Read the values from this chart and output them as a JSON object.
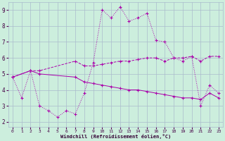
{
  "xlabel": "Windchill (Refroidissement éolien,°C)",
  "background_color": "#cceedd",
  "grid_color": "#aabbcc",
  "line_color": "#aa00aa",
  "xlim": [
    -0.5,
    23.5
  ],
  "ylim": [
    1.7,
    9.5
  ],
  "yticks": [
    2,
    3,
    4,
    5,
    6,
    7,
    8,
    9
  ],
  "xticks": [
    0,
    1,
    2,
    3,
    4,
    5,
    6,
    7,
    8,
    9,
    10,
    11,
    12,
    13,
    14,
    15,
    16,
    17,
    18,
    19,
    20,
    21,
    22,
    23
  ],
  "series1_x": [
    0,
    1,
    2,
    3,
    4,
    5,
    6,
    7,
    8,
    9,
    10,
    11,
    12,
    13,
    14,
    15,
    16,
    17,
    18,
    19,
    20,
    21,
    22,
    23
  ],
  "series1_y": [
    4.8,
    3.5,
    5.2,
    3.0,
    2.7,
    2.3,
    2.7,
    2.5,
    3.8,
    5.7,
    9.0,
    8.5,
    9.2,
    8.3,
    8.5,
    8.8,
    7.1,
    7.0,
    6.0,
    5.8,
    6.1,
    3.0,
    4.3,
    3.8
  ],
  "series2_x": [
    0,
    2,
    3,
    7,
    8,
    9,
    10,
    11,
    12,
    13,
    14,
    15,
    16,
    17,
    18,
    19,
    20,
    21,
    22,
    23
  ],
  "series2_y": [
    4.8,
    5.2,
    5.2,
    5.8,
    5.5,
    5.5,
    5.6,
    5.7,
    5.8,
    5.8,
    5.9,
    6.0,
    6.0,
    5.8,
    6.0,
    6.0,
    6.1,
    5.8,
    6.1,
    6.1
  ],
  "series3_x": [
    0,
    2,
    3,
    7,
    8,
    9,
    10,
    11,
    12,
    13,
    14,
    15,
    16,
    17,
    18,
    19,
    20,
    21,
    22,
    23
  ],
  "series3_y": [
    4.8,
    5.2,
    5.0,
    4.8,
    4.5,
    4.4,
    4.3,
    4.2,
    4.1,
    4.0,
    4.0,
    3.9,
    3.8,
    3.7,
    3.6,
    3.5,
    3.5,
    3.4,
    3.8,
    3.5
  ]
}
